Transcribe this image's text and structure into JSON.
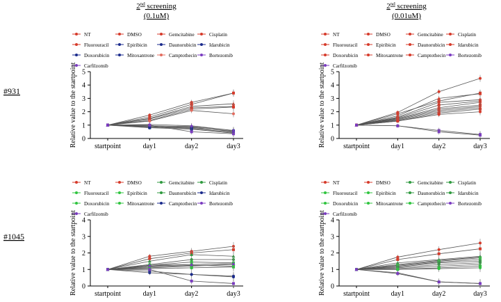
{
  "columns": [
    {
      "title_main": "2",
      "title_sup": "nd",
      "title_rest": " screening",
      "concentration": "(0.1uM)"
    },
    {
      "title_main": "2",
      "title_sup": "nd",
      "title_rest": " screening",
      "concentration": "(0.01uM)"
    }
  ],
  "rows": [
    {
      "label": "#931"
    },
    {
      "label": "#1045"
    }
  ],
  "chart_data": [
    {
      "type": "line",
      "id": "p931-0.1",
      "title": "2nd screening (0.1uM) — #931",
      "categories": [
        "startpoint",
        "day1",
        "day2",
        "day3"
      ],
      "ylabel": "Relative value to the startpoint",
      "ylim": [
        0,
        5
      ],
      "yticks": [
        0,
        1,
        2,
        3,
        4,
        5
      ],
      "legend_position": "top",
      "legend": [
        {
          "name": "NT",
          "color": "#d63a2a"
        },
        {
          "name": "DMSO",
          "color": "#d63a2a"
        },
        {
          "name": "Gemcitabine",
          "color": "#d63a2a"
        },
        {
          "name": "Cisplatin",
          "color": "#d63a2a"
        },
        {
          "name": "Fluorouracil",
          "color": "#d63a2a"
        },
        {
          "name": "Epiribicin",
          "color": "#1a2a8c"
        },
        {
          "name": "Daunorubicin",
          "color": "#1a2a8c"
        },
        {
          "name": "Idarubicin",
          "color": "#1a2a8c"
        },
        {
          "name": "Doxorubicin",
          "color": "#1a2a8c"
        },
        {
          "name": "Mitoxantrone",
          "color": "#1a2a8c"
        },
        {
          "name": "Camptothecin",
          "color": "#e36b5e"
        },
        {
          "name": "Bortezomib",
          "color": "#7a3bc0"
        },
        {
          "name": "Carfilzomib",
          "color": "#7a3bc0"
        }
      ],
      "series": [
        {
          "name": "NT",
          "values": [
            1,
            1.75,
            2.7,
            3.4
          ],
          "color": "#d63a2a"
        },
        {
          "name": "DMSO",
          "values": [
            1,
            1.6,
            2.55,
            3.4
          ],
          "color": "#d63a2a"
        },
        {
          "name": "Gemcitabine",
          "values": [
            1,
            1.5,
            2.4,
            2.6
          ],
          "color": "#d63a2a"
        },
        {
          "name": "Cisplatin",
          "values": [
            1,
            1.45,
            2.3,
            2.4
          ],
          "color": "#d63a2a"
        },
        {
          "name": "Fluorouracil",
          "values": [
            1,
            1.35,
            2.2,
            2.35
          ],
          "color": "#d63a2a"
        },
        {
          "name": "Epiribicin",
          "values": [
            1,
            0.95,
            0.9,
            0.6
          ],
          "color": "#1a2a8c"
        },
        {
          "name": "Daunorubicin",
          "values": [
            1,
            0.9,
            0.8,
            0.55
          ],
          "color": "#1a2a8c"
        },
        {
          "name": "Idarubicin",
          "values": [
            1,
            0.9,
            0.85,
            0.5
          ],
          "color": "#1a2a8c"
        },
        {
          "name": "Doxorubicin",
          "values": [
            1,
            0.85,
            0.75,
            0.45
          ],
          "color": "#1a2a8c"
        },
        {
          "name": "Mitoxantrone",
          "values": [
            1,
            0.8,
            0.7,
            0.4
          ],
          "color": "#1a2a8c"
        },
        {
          "name": "Camptothecin",
          "values": [
            1,
            1.3,
            2.1,
            1.85
          ],
          "color": "#e36b5e"
        },
        {
          "name": "Bortezomib",
          "values": [
            1,
            1.0,
            0.5,
            0.35
          ],
          "color": "#7a3bc0"
        },
        {
          "name": "Carfilzomib",
          "values": [
            1,
            1.05,
            0.95,
            0.6
          ],
          "color": "#7a3bc0"
        }
      ]
    },
    {
      "type": "line",
      "id": "p931-0.01",
      "title": "2nd screening (0.01uM) — #931",
      "categories": [
        "startpoint",
        "day1",
        "day2",
        "day3"
      ],
      "ylabel": "Relative value to the startpoint",
      "ylim": [
        0,
        5
      ],
      "yticks": [
        0,
        1,
        2,
        3,
        4,
        5
      ],
      "legend_position": "top",
      "legend": [
        {
          "name": "NT",
          "color": "#d63a2a"
        },
        {
          "name": "DMSO",
          "color": "#d63a2a"
        },
        {
          "name": "Gemcitabine",
          "color": "#d63a2a"
        },
        {
          "name": "Cisplatin",
          "color": "#d63a2a"
        },
        {
          "name": "Fluorouracil",
          "color": "#d63a2a"
        },
        {
          "name": "Epiribicin",
          "color": "#d63a2a"
        },
        {
          "name": "Daunorubicin",
          "color": "#d63a2a"
        },
        {
          "name": "Idarubicin",
          "color": "#d63a2a"
        },
        {
          "name": "Doxorubicin",
          "color": "#d63a2a"
        },
        {
          "name": "Mitoxantrone",
          "color": "#d63a2a"
        },
        {
          "name": "Camptothecin",
          "color": "#d63a2a"
        },
        {
          "name": "Bortezomib",
          "color": "#7a3bc0"
        },
        {
          "name": "Carfilzomib",
          "color": "#7a3bc0"
        }
      ],
      "series": [
        {
          "name": "NT",
          "values": [
            1,
            1.95,
            3.5,
            4.5
          ],
          "color": "#d63a2a"
        },
        {
          "name": "DMSO",
          "values": [
            1,
            1.85,
            2.8,
            3.4
          ],
          "color": "#d63a2a"
        },
        {
          "name": "Gemcitabine",
          "values": [
            1,
            1.7,
            3.0,
            3.35
          ],
          "color": "#d63a2a"
        },
        {
          "name": "Cisplatin",
          "values": [
            1,
            1.6,
            2.7,
            2.9
          ],
          "color": "#d63a2a"
        },
        {
          "name": "Fluorouracil",
          "values": [
            1,
            1.55,
            2.5,
            2.8
          ],
          "color": "#d63a2a"
        },
        {
          "name": "Epiribicin",
          "values": [
            1,
            1.5,
            2.3,
            2.7
          ],
          "color": "#d63a2a"
        },
        {
          "name": "Daunorubicin",
          "values": [
            1,
            1.45,
            2.2,
            2.5
          ],
          "color": "#d63a2a"
        },
        {
          "name": "Idarubicin",
          "values": [
            1,
            1.4,
            2.1,
            2.4
          ],
          "color": "#d63a2a"
        },
        {
          "name": "Doxorubicin",
          "values": [
            1,
            1.35,
            2.0,
            2.3
          ],
          "color": "#d63a2a"
        },
        {
          "name": "Mitoxantrone",
          "values": [
            1,
            1.3,
            1.9,
            2.2
          ],
          "color": "#d63a2a"
        },
        {
          "name": "Camptothecin",
          "values": [
            1,
            1.3,
            1.8,
            2.0
          ],
          "color": "#d63a2a"
        },
        {
          "name": "Bortezomib",
          "values": [
            1,
            0.95,
            0.6,
            0.3
          ],
          "color": "#7a3bc0"
        },
        {
          "name": "Carfilzomib",
          "values": [
            1,
            0.95,
            0.5,
            0.25
          ],
          "color": "#7a3bc0"
        }
      ]
    },
    {
      "type": "line",
      "id": "p1045-0.1",
      "title": "2nd screening (0.1uM) — #1045",
      "categories": [
        "startpoint",
        "day1",
        "day2",
        "day3"
      ],
      "ylabel": "Relative value to the startpoint",
      "ylim": [
        0,
        4
      ],
      "yticks": [
        0,
        1,
        2,
        3,
        4
      ],
      "legend_position": "top",
      "legend": [
        {
          "name": "NT",
          "color": "#d63a2a"
        },
        {
          "name": "DMSO",
          "color": "#d63a2a"
        },
        {
          "name": "Gemcitabine",
          "color": "#2f9a3f"
        },
        {
          "name": "Cisplatin",
          "color": "#2f9a3f"
        },
        {
          "name": "Fluorouracil",
          "color": "#2fc43f"
        },
        {
          "name": "Epiribicin",
          "color": "#2fc43f"
        },
        {
          "name": "Daunorubicin",
          "color": "#2f9a3f"
        },
        {
          "name": "Idarubicin",
          "color": "#1a2a8c"
        },
        {
          "name": "Doxorubicin",
          "color": "#2fc43f"
        },
        {
          "name": "Mitoxantrone",
          "color": "#2fc43f"
        },
        {
          "name": "Camptothecin",
          "color": "#1a2a8c"
        },
        {
          "name": "Bortezomib",
          "color": "#7a3bc0"
        },
        {
          "name": "Carfilzomib",
          "color": "#7a3bc0"
        }
      ],
      "series": [
        {
          "name": "NT",
          "values": [
            1,
            1.8,
            2.1,
            2.4
          ],
          "color": "#d63a2a"
        },
        {
          "name": "DMSO",
          "values": [
            1,
            1.65,
            2.0,
            2.2
          ],
          "color": "#d63a2a"
        },
        {
          "name": "Gemcitabine",
          "values": [
            1,
            1.5,
            1.9,
            1.8
          ],
          "color": "#2f9a3f"
        },
        {
          "name": "Cisplatin",
          "values": [
            1,
            1.3,
            1.6,
            1.6
          ],
          "color": "#2f9a3f"
        },
        {
          "name": "Fluorouracil",
          "values": [
            1,
            1.25,
            1.45,
            1.4
          ],
          "color": "#2fc43f"
        },
        {
          "name": "Epiribicin",
          "values": [
            1,
            1.2,
            1.3,
            1.35
          ],
          "color": "#2fc43f"
        },
        {
          "name": "Daunorubicin",
          "values": [
            1,
            1.15,
            1.25,
            1.2
          ],
          "color": "#2f9a3f"
        },
        {
          "name": "Idarubicin",
          "values": [
            1,
            0.8,
            0.7,
            0.6
          ],
          "color": "#1a2a8c"
        },
        {
          "name": "Doxorubicin",
          "values": [
            1,
            1.1,
            1.2,
            1.3
          ],
          "color": "#2fc43f"
        },
        {
          "name": "Mitoxantrone",
          "values": [
            1,
            1.05,
            1.1,
            1.15
          ],
          "color": "#2fc43f"
        },
        {
          "name": "Camptothecin",
          "values": [
            1,
            0.9,
            0.7,
            0.55
          ],
          "color": "#1a2a8c"
        },
        {
          "name": "Bortezomib",
          "values": [
            1,
            1.0,
            0.3,
            0.15
          ],
          "color": "#7a3bc0"
        },
        {
          "name": "Carfilzomib",
          "values": [
            1,
            1.25,
            1.3,
            1.35
          ],
          "color": "#7a3bc0"
        }
      ]
    },
    {
      "type": "line",
      "id": "p1045-0.01",
      "title": "2nd screening (0.01uM) — #1045",
      "categories": [
        "startpoint",
        "day1",
        "day2",
        "day3"
      ],
      "ylabel": "Relative value to the startpoint",
      "ylim": [
        0,
        4
      ],
      "yticks": [
        0,
        1,
        2,
        3,
        4
      ],
      "legend_position": "top",
      "legend": [
        {
          "name": "NT",
          "color": "#d63a2a"
        },
        {
          "name": "DMSO",
          "color": "#d63a2a"
        },
        {
          "name": "Gemcitabine",
          "color": "#2f9a3f"
        },
        {
          "name": "Cisplatin",
          "color": "#2f9a3f"
        },
        {
          "name": "Fluorouracil",
          "color": "#2fc43f"
        },
        {
          "name": "Epiribicin",
          "color": "#2fc43f"
        },
        {
          "name": "Daunorubicin",
          "color": "#2f9a3f"
        },
        {
          "name": "Idarubicin",
          "color": "#2f9a3f"
        },
        {
          "name": "Doxorubicin",
          "color": "#2fc43f"
        },
        {
          "name": "Mitoxantrone",
          "color": "#2fc43f"
        },
        {
          "name": "Camptothecin",
          "color": "#2fc43f"
        },
        {
          "name": "Bortezomib",
          "color": "#7a3bc0"
        },
        {
          "name": "Carfilzomib",
          "color": "#7a3bc0"
        }
      ],
      "series": [
        {
          "name": "NT",
          "values": [
            1,
            1.75,
            2.2,
            2.6
          ],
          "color": "#d63a2a"
        },
        {
          "name": "DMSO",
          "values": [
            1,
            1.6,
            1.95,
            2.25
          ],
          "color": "#d63a2a"
        },
        {
          "name": "Gemcitabine",
          "values": [
            1,
            1.4,
            1.6,
            1.8
          ],
          "color": "#2f9a3f"
        },
        {
          "name": "Cisplatin",
          "values": [
            1,
            1.3,
            1.55,
            1.75
          ],
          "color": "#2f9a3f"
        },
        {
          "name": "Fluorouracil",
          "values": [
            1,
            1.25,
            1.5,
            1.7
          ],
          "color": "#2fc43f"
        },
        {
          "name": "Epiribicin",
          "values": [
            1,
            1.2,
            1.45,
            1.6
          ],
          "color": "#2fc43f"
        },
        {
          "name": "Daunorubicin",
          "values": [
            1,
            1.15,
            1.4,
            1.5
          ],
          "color": "#2f9a3f"
        },
        {
          "name": "Idarubicin",
          "values": [
            1,
            1.1,
            1.3,
            1.4
          ],
          "color": "#2f9a3f"
        },
        {
          "name": "Doxorubicin",
          "values": [
            1,
            1.05,
            1.2,
            1.3
          ],
          "color": "#2fc43f"
        },
        {
          "name": "Mitoxantrone",
          "values": [
            1,
            1.0,
            1.1,
            1.2
          ],
          "color": "#2fc43f"
        },
        {
          "name": "Camptothecin",
          "values": [
            1,
            1.0,
            1.05,
            1.1
          ],
          "color": "#2fc43f"
        },
        {
          "name": "Bortezomib",
          "values": [
            1,
            0.75,
            0.25,
            0.15
          ],
          "color": "#7a3bc0"
        },
        {
          "name": "Carfilzomib",
          "values": [
            1,
            0.8,
            0.25,
            0.15
          ],
          "color": "#7a3bc0"
        }
      ]
    }
  ]
}
